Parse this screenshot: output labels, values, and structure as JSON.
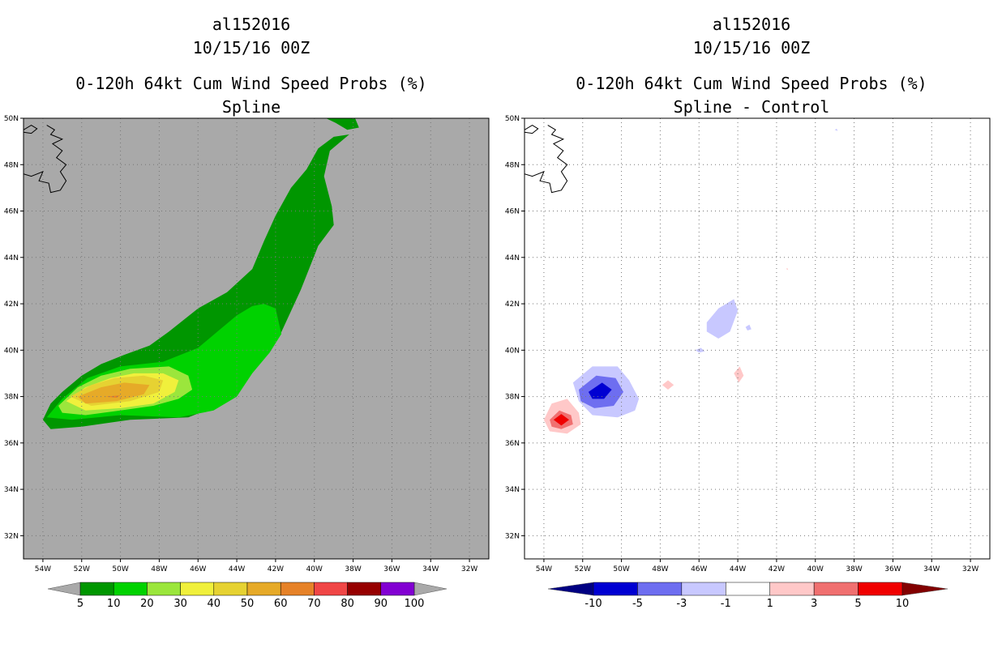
{
  "chart_data": [
    {
      "type": "heatmap",
      "panel": "left",
      "title_lines": [
        "al152016",
        "10/15/16 00Z",
        "0-120h 64kt Cum Wind Speed Probs (%)",
        "Spline"
      ],
      "x_ticks": [
        "54W",
        "52W",
        "50W",
        "48W",
        "46W",
        "44W",
        "42W",
        "40W",
        "38W",
        "36W",
        "34W",
        "32W"
      ],
      "y_ticks": [
        "50N",
        "48N",
        "46N",
        "44N",
        "42N",
        "40N",
        "38N",
        "36N",
        "34N",
        "32N"
      ],
      "xlim": [
        -55,
        -31
      ],
      "ylim": [
        31,
        50
      ],
      "background_color": "#a9a9a9",
      "colorbar": {
        "labels": [
          "5",
          "10",
          "20",
          "30",
          "40",
          "50",
          "60",
          "70",
          "80",
          "90",
          "100"
        ],
        "colors": [
          "#009600",
          "#00d200",
          "#9be63c",
          "#f0f03c",
          "#e6d232",
          "#e6aa28",
          "#e68228",
          "#f04646",
          "#960000",
          "#8200d2"
        ],
        "arrow_color": "#a9a9a9"
      },
      "contours": [
        {
          "level": "5-10",
          "color": "#009600",
          "points": [
            [
              -54.0,
              37.0
            ],
            [
              -53.6,
              37.7
            ],
            [
              -53.0,
              38.2
            ],
            [
              -52.0,
              38.9
            ],
            [
              -51.0,
              39.4
            ],
            [
              -49.8,
              39.8
            ],
            [
              -48.5,
              40.2
            ],
            [
              -47.5,
              40.8
            ],
            [
              -46.0,
              41.8
            ],
            [
              -44.5,
              42.5
            ],
            [
              -43.2,
              43.5
            ],
            [
              -42.6,
              44.7
            ],
            [
              -42.0,
              45.8
            ],
            [
              -41.2,
              47.0
            ],
            [
              -40.4,
              47.8
            ],
            [
              -39.8,
              48.7
            ],
            [
              -39.0,
              49.2
            ],
            [
              -38.2,
              49.3
            ],
            [
              -39.2,
              48.6
            ],
            [
              -39.5,
              47.5
            ],
            [
              -39.1,
              46.2
            ],
            [
              -39.0,
              45.4
            ],
            [
              -39.8,
              44.5
            ],
            [
              -40.7,
              42.6
            ],
            [
              -41.8,
              40.6
            ],
            [
              -43.0,
              39.8
            ],
            [
              -43.8,
              38.6
            ],
            [
              -45.0,
              37.6
            ],
            [
              -46.5,
              37.1
            ],
            [
              -49.5,
              37.0
            ],
            [
              -52.0,
              36.7
            ],
            [
              -53.6,
              36.6
            ]
          ]
        },
        {
          "level": "5-10-cap",
          "color": "#009600",
          "points": [
            [
              -38.9,
              49.8
            ],
            [
              -39.4,
              50.0
            ],
            [
              -37.9,
              50.0
            ],
            [
              -37.7,
              49.6
            ],
            [
              -38.3,
              49.5
            ]
          ]
        },
        {
          "level": "10-20",
          "color": "#00d200",
          "points": [
            [
              -53.8,
              37.1
            ],
            [
              -53.0,
              37.9
            ],
            [
              -51.7,
              38.8
            ],
            [
              -50.0,
              39.3
            ],
            [
              -47.8,
              39.5
            ],
            [
              -46.0,
              40.1
            ],
            [
              -45.0,
              40.8
            ],
            [
              -44.0,
              41.5
            ],
            [
              -43.2,
              41.9
            ],
            [
              -42.6,
              42.0
            ],
            [
              -42.0,
              41.8
            ],
            [
              -41.7,
              40.7
            ],
            [
              -42.3,
              39.9
            ],
            [
              -43.2,
              39.0
            ],
            [
              -44.0,
              38.0
            ],
            [
              -45.2,
              37.4
            ],
            [
              -47.0,
              37.1
            ],
            [
              -50.0,
              37.2
            ],
            [
              -52.5,
              37.0
            ]
          ]
        },
        {
          "level": "20-30",
          "color": "#9be63c",
          "points": [
            [
              -53.2,
              37.6
            ],
            [
              -52.2,
              38.4
            ],
            [
              -51.0,
              38.9
            ],
            [
              -49.5,
              39.2
            ],
            [
              -47.5,
              39.3
            ],
            [
              -46.5,
              38.9
            ],
            [
              -46.3,
              38.3
            ],
            [
              -47.0,
              37.9
            ],
            [
              -48.3,
              37.6
            ],
            [
              -50.0,
              37.4
            ],
            [
              -51.8,
              37.2
            ],
            [
              -53.0,
              37.3
            ]
          ]
        },
        {
          "level": "30-40",
          "color": "#f0f03c",
          "points": [
            [
              -52.8,
              37.8
            ],
            [
              -51.8,
              38.4
            ],
            [
              -50.5,
              38.8
            ],
            [
              -49.3,
              39.0
            ],
            [
              -47.8,
              39.0
            ],
            [
              -47.0,
              38.7
            ],
            [
              -47.2,
              38.2
            ],
            [
              -48.3,
              37.7
            ],
            [
              -50.0,
              37.5
            ],
            [
              -51.8,
              37.4
            ]
          ]
        },
        {
          "level": "40-50",
          "color": "#e6d232",
          "points": [
            [
              -52.6,
              38.0
            ],
            [
              -51.5,
              38.5
            ],
            [
              -50.3,
              38.8
            ],
            [
              -48.8,
              38.9
            ],
            [
              -47.8,
              38.7
            ],
            [
              -48.0,
              38.2
            ],
            [
              -49.5,
              37.8
            ],
            [
              -51.5,
              37.6
            ]
          ]
        },
        {
          "level": "50-60",
          "color": "#e6aa28",
          "points": [
            [
              -52.2,
              38.0
            ],
            [
              -51.0,
              38.4
            ],
            [
              -49.8,
              38.6
            ],
            [
              -48.5,
              38.5
            ],
            [
              -48.8,
              38.1
            ],
            [
              -50.2,
              37.8
            ],
            [
              -51.8,
              37.7
            ]
          ]
        },
        {
          "level": "60-70",
          "color": "#e68228",
          "points": [
            [
              -50.8,
              38.0
            ],
            [
              -50.0,
              38.05
            ],
            [
              -50.2,
              37.95
            ]
          ]
        }
      ]
    },
    {
      "type": "heatmap",
      "panel": "right",
      "title_lines": [
        "al152016",
        "10/15/16 00Z",
        "0-120h 64kt Cum Wind Speed Probs (%)",
        "Spline - Control"
      ],
      "x_ticks": [
        "54W",
        "52W",
        "50W",
        "48W",
        "46W",
        "44W",
        "42W",
        "40W",
        "38W",
        "36W",
        "34W",
        "32W"
      ],
      "y_ticks": [
        "50N",
        "48N",
        "46N",
        "44N",
        "42N",
        "40N",
        "38N",
        "36N",
        "34N",
        "32N"
      ],
      "xlim": [
        -55,
        -31
      ],
      "ylim": [
        31,
        50
      ],
      "background_color": "#ffffff",
      "colorbar": {
        "labels": [
          "-10",
          "-5",
          "-3",
          "-1",
          "1",
          "3",
          "5",
          "10"
        ],
        "colors": [
          "#0000d2",
          "#6e6ef0",
          "#c8c8ff",
          "#ffffff",
          "#ffc8c8",
          "#f07070",
          "#f00000"
        ],
        "left_arrow_color": "#000082",
        "right_arrow_color": "#820000"
      },
      "contours": [
        {
          "level": "-1to-3",
          "color": "#c8c8ff",
          "points": [
            [
              -52.5,
              38.6
            ],
            [
              -51.5,
              39.3
            ],
            [
              -50.2,
              39.3
            ],
            [
              -49.6,
              38.7
            ],
            [
              -49.1,
              37.9
            ],
            [
              -49.3,
              37.4
            ],
            [
              -50.2,
              37.1
            ],
            [
              -51.5,
              37.2
            ],
            [
              -52.2,
              37.8
            ]
          ]
        },
        {
          "level": "-3to-5",
          "color": "#6e6ef0",
          "points": [
            [
              -52.2,
              38.3
            ],
            [
              -51.3,
              38.9
            ],
            [
              -50.3,
              38.8
            ],
            [
              -49.9,
              38.2
            ],
            [
              -50.4,
              37.6
            ],
            [
              -51.4,
              37.5
            ],
            [
              -52.1,
              37.8
            ]
          ]
        },
        {
          "level": "-5to-10",
          "color": "#0000d2",
          "points": [
            [
              -51.7,
              38.2
            ],
            [
              -51.0,
              38.6
            ],
            [
              -50.5,
              38.3
            ],
            [
              -50.9,
              37.9
            ],
            [
              -51.5,
              37.9
            ]
          ]
        },
        {
          "level": "1to3",
          "color": "#ffc8c8",
          "points": [
            [
              -54.0,
              37.0
            ],
            [
              -53.6,
              37.7
            ],
            [
              -52.8,
              37.9
            ],
            [
              -52.2,
              37.3
            ],
            [
              -52.1,
              36.8
            ],
            [
              -52.8,
              36.4
            ],
            [
              -53.7,
              36.5
            ]
          ]
        },
        {
          "level": "3to5",
          "color": "#f07070",
          "points": [
            [
              -53.7,
              37.0
            ],
            [
              -53.2,
              37.4
            ],
            [
              -52.6,
              37.2
            ],
            [
              -52.5,
              36.8
            ],
            [
              -53.1,
              36.6
            ],
            [
              -53.6,
              36.7
            ]
          ]
        },
        {
          "level": "5to10",
          "color": "#f00000",
          "points": [
            [
              -53.5,
              37.0
            ],
            [
              -53.1,
              37.25
            ],
            [
              -52.7,
              37.0
            ],
            [
              -53.1,
              36.75
            ]
          ]
        },
        {
          "level": "-1to-3b",
          "color": "#c8c8ff",
          "points": [
            [
              -45.6,
              41.2
            ],
            [
              -45.0,
              41.8
            ],
            [
              -44.2,
              42.2
            ],
            [
              -44.0,
              41.7
            ],
            [
              -44.4,
              40.8
            ],
            [
              -45.0,
              40.5
            ],
            [
              -45.6,
              40.8
            ]
          ]
        },
        {
          "level": "-1to-3c",
          "color": "#c8c8ff",
          "points": [
            [
              -43.6,
              41.0
            ],
            [
              -43.4,
              41.1
            ],
            [
              -43.3,
              40.9
            ],
            [
              -43.5,
              40.85
            ]
          ]
        },
        {
          "level": "-1to-3d",
          "color": "#c8c8ff",
          "points": [
            [
              -46.2,
              40.0
            ],
            [
              -45.9,
              40.1
            ],
            [
              -45.7,
              39.95
            ],
            [
              -46.0,
              39.9
            ]
          ]
        },
        {
          "level": "-1to-3e",
          "color": "#c8c8ff",
          "points": [
            [
              -39.0,
              49.5
            ],
            [
              -38.9,
              49.55
            ],
            [
              -38.85,
              49.45
            ]
          ]
        },
        {
          "level": "1to3b",
          "color": "#ffc8c8",
          "points": [
            [
              -47.9,
              38.5
            ],
            [
              -47.6,
              38.7
            ],
            [
              -47.3,
              38.5
            ],
            [
              -47.6,
              38.3
            ]
          ]
        },
        {
          "level": "1to3c",
          "color": "#ffc8c8",
          "points": [
            [
              -44.2,
              39.0
            ],
            [
              -43.9,
              39.3
            ],
            [
              -43.7,
              38.9
            ],
            [
              -43.95,
              38.6
            ]
          ]
        },
        {
          "level": "1to3d",
          "color": "#ffc8c8",
          "points": [
            [
              -41.5,
              43.5
            ],
            [
              -41.45,
              43.55
            ],
            [
              -41.4,
              43.45
            ]
          ]
        }
      ]
    }
  ]
}
